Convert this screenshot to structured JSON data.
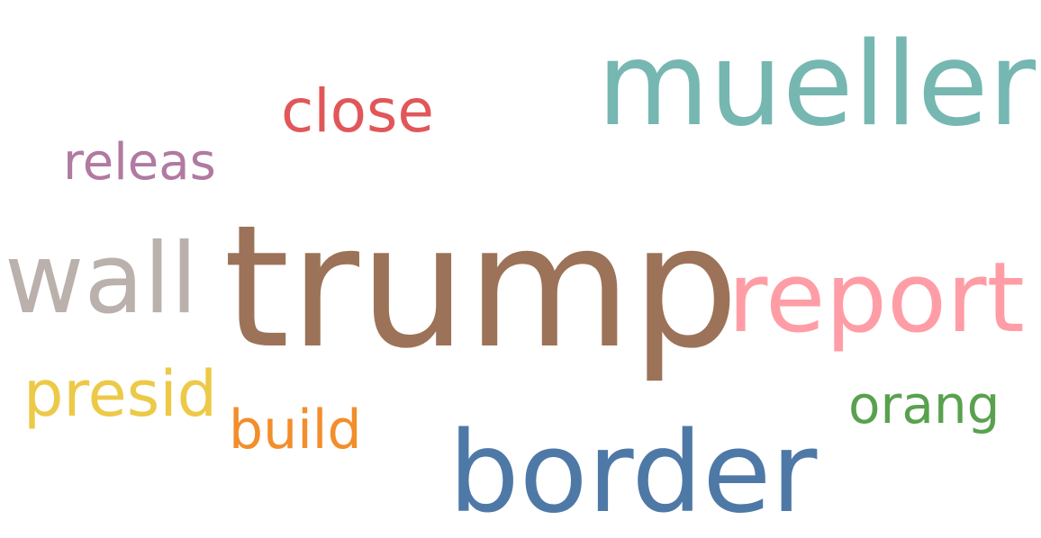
{
  "words": {
    "trump": {
      "text": "trump",
      "color": "#9c7358"
    },
    "mueller": {
      "text": "mueller",
      "color": "#76b7b2"
    },
    "border": {
      "text": "border",
      "color": "#4e79a7"
    },
    "report": {
      "text": "report",
      "color": "#ff9da7"
    },
    "wall": {
      "text": "wall",
      "color": "#bab0ac"
    },
    "close": {
      "text": "close",
      "color": "#e15759"
    },
    "presid": {
      "text": "presid",
      "color": "#edc948"
    },
    "releas": {
      "text": "releas",
      "color": "#b07aa1"
    },
    "build": {
      "text": "build",
      "color": "#f28e2b"
    },
    "orang": {
      "text": "orang",
      "color": "#59a14f"
    }
  }
}
